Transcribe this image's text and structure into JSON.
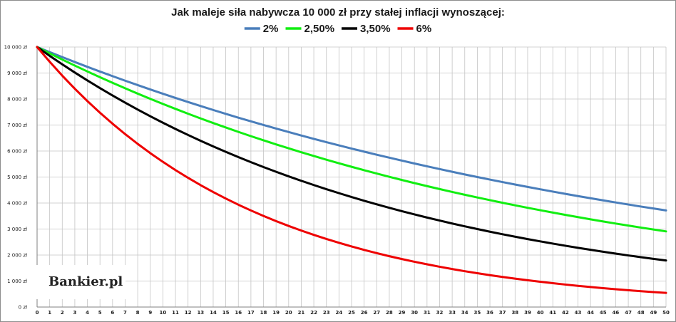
{
  "chart_data": {
    "type": "line",
    "title": "Jak maleje siła nabywcza 10 000 zł przy stałej inflacji wynoszącej:",
    "logo": "Bankier.pl",
    "initial_value": 10000,
    "x": [
      0,
      1,
      2,
      3,
      4,
      5,
      6,
      7,
      8,
      9,
      10,
      11,
      12,
      13,
      14,
      15,
      16,
      17,
      18,
      19,
      20,
      21,
      22,
      23,
      24,
      25,
      26,
      27,
      28,
      29,
      30,
      31,
      32,
      33,
      34,
      35,
      36,
      37,
      38,
      39,
      40,
      41,
      42,
      43,
      44,
      45,
      46,
      47,
      48,
      49,
      50
    ],
    "x_tick_labels": [
      "0",
      "1",
      "2",
      "3",
      "4",
      "5",
      "6",
      "7",
      "8",
      "9",
      "10",
      "11",
      "12",
      "13",
      "14",
      "15",
      "16",
      "17",
      "18",
      "19",
      "20",
      "21",
      "22",
      "23",
      "24",
      "25",
      "26",
      "27",
      "28",
      "29",
      "30",
      "31",
      "32",
      "33",
      "34",
      "35",
      "36",
      "37",
      "38",
      "39",
      "40",
      "41",
      "42",
      "43",
      "44",
      "45",
      "46",
      "47",
      "48",
      "49",
      "50"
    ],
    "xlim": [
      0,
      50
    ],
    "ylim": [
      0,
      10000
    ],
    "y_ticks": [
      0,
      1000,
      2000,
      3000,
      4000,
      5000,
      6000,
      7000,
      8000,
      9000,
      10000
    ],
    "y_tick_labels": [
      "0 zł",
      "1 000 zł",
      "2 000 zł",
      "3 000 zł",
      "4 000 zł",
      "5 000 zł",
      "6 000 zł",
      "7 000 zł",
      "8 000 zł",
      "9 000 zł",
      "10 000 zł"
    ],
    "grid": true,
    "legend_position": "top-center",
    "series": [
      {
        "name": "2%",
        "rate": 0.02,
        "color": "#4a7ebb",
        "values": [
          10000,
          9804,
          9612,
          9423,
          9238,
          9057,
          8880,
          8706,
          8535,
          8368,
          8203,
          8043,
          7885,
          7730,
          7579,
          7430,
          7284,
          7142,
          7002,
          6864,
          6730,
          6598,
          6468,
          6342,
          6217,
          6095,
          5976,
          5859,
          5744,
          5631,
          5521,
          5412,
          5306,
          5202,
          5100,
          5000,
          4902,
          4806,
          4712,
          4619,
          4529,
          4440,
          4353,
          4268,
          4184,
          4102,
          4022,
          3943,
          3865,
          3790,
          3715
        ]
      },
      {
        "name": "2,50%",
        "rate": 0.025,
        "color": "#11ee11",
        "values": [
          10000,
          9756,
          9518,
          9286,
          9060,
          8839,
          8623,
          8413,
          8207,
          8007,
          7812,
          7621,
          7436,
          7254,
          7077,
          6905,
          6736,
          6572,
          6412,
          6255,
          6103,
          5954,
          5809,
          5667,
          5529,
          5394,
          5262,
          5134,
          5009,
          4887,
          4767,
          4651,
          4538,
          4427,
          4319,
          4214,
          4111,
          4011,
          3913,
          3817,
          3724,
          3633,
          3545,
          3458,
          3374,
          3292,
          3211,
          3133,
          3057,
          2982,
          2909
        ]
      },
      {
        "name": "3,50%",
        "rate": 0.035,
        "color": "#000000",
        "values": [
          10000,
          9662,
          9335,
          9019,
          8714,
          8420,
          8135,
          7860,
          7594,
          7337,
          7089,
          6849,
          6618,
          6394,
          6178,
          5969,
          5767,
          5572,
          5384,
          5202,
          5026,
          4856,
          4692,
          4533,
          4380,
          4231,
          4088,
          3950,
          3817,
          3687,
          3563,
          3442,
          3326,
          3213,
          3105,
          3000,
          2898,
          2800,
          2706,
          2614,
          2526,
          2440,
          2358,
          2278,
          2201,
          2127,
          2055,
          1985,
          1918,
          1853,
          1791
        ]
      },
      {
        "name": "6%",
        "rate": 0.06,
        "color": "#ee0000",
        "values": [
          10000,
          9434,
          8900,
          8396,
          7921,
          7473,
          7050,
          6651,
          6274,
          5919,
          5584,
          5268,
          4970,
          4688,
          4423,
          4173,
          3936,
          3714,
          3503,
          3305,
          3118,
          2942,
          2775,
          2618,
          2470,
          2330,
          2198,
          2074,
          1956,
          1846,
          1741,
          1643,
          1550,
          1462,
          1379,
          1301,
          1227,
          1158,
          1092,
          1031,
          972,
          917,
          865,
          816,
          770,
          727,
          685,
          647,
          610,
          575,
          543
        ]
      }
    ]
  }
}
